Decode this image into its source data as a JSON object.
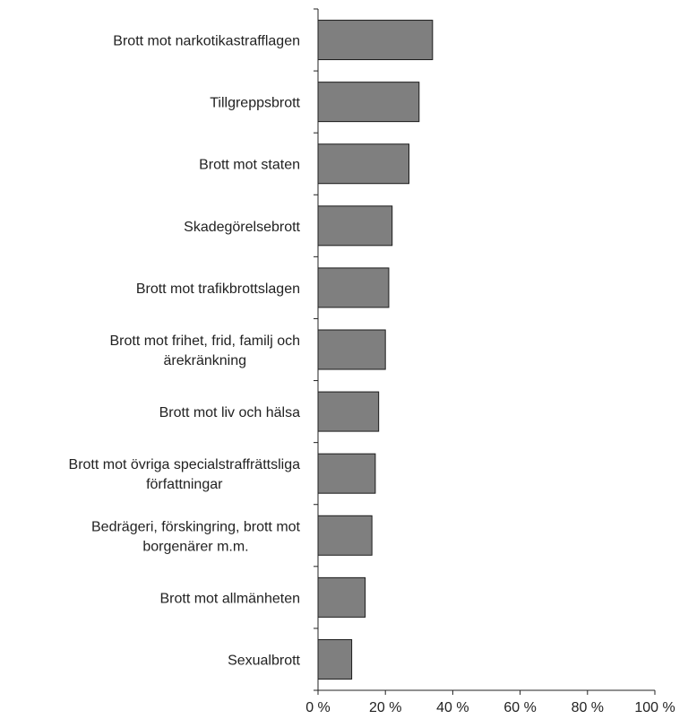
{
  "chart_data": {
    "type": "bar",
    "orientation": "horizontal",
    "categories": [
      "Brott mot narkotikastrafflagen",
      "Tillgreppsbrott",
      "Brott mot staten",
      "Skadegörelsebrott",
      "Brott mot trafikbrottslagen",
      "Brott mot frihet, frid, familj och ärekränkning",
      "Brott mot liv och hälsa",
      "Brott mot övriga specialstraffrättsliga författningar",
      "Bedrägeri, förskingring, brott mot borgenärer m.m.",
      "Brott mot allmänheten",
      "Sexualbrott"
    ],
    "category_lines": [
      [
        "Brott mot narkotikastrafflagen"
      ],
      [
        "Tillgreppsbrott"
      ],
      [
        "Brott mot staten"
      ],
      [
        "Skadegörelsebrott"
      ],
      [
        "Brott mot trafikbrottslagen"
      ],
      [
        "Brott mot frihet, frid, familj och",
        "ärekränkning"
      ],
      [
        "Brott mot liv och hälsa"
      ],
      [
        "Brott mot övriga specialstraffrättsliga",
        "författningar"
      ],
      [
        "Bedrägeri, förskingring, brott mot",
        "borgenärer m.m."
      ],
      [
        "Brott mot allmänheten"
      ],
      [
        "Sexualbrott"
      ]
    ],
    "values": [
      34,
      30,
      27,
      22,
      21,
      20,
      18,
      17,
      16,
      14,
      10
    ],
    "xlim": [
      0,
      100
    ],
    "xticks": [
      0,
      20,
      40,
      60,
      80,
      100
    ],
    "xtick_labels": [
      "0 %",
      "20 %",
      "40 %",
      "60 %",
      "80 %",
      "100 %"
    ],
    "title": "",
    "xlabel": "",
    "ylabel": "",
    "grid": false,
    "legend": "none",
    "bar_color": "#7f7f7f",
    "bar_edge_color": "#1a1a1a",
    "axis_color": "#222222"
  }
}
